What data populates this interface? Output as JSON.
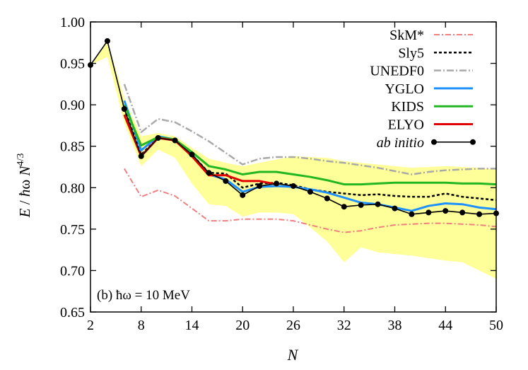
{
  "chart_data": {
    "type": "line",
    "xlabel": "N",
    "ylabel_parts": {
      "e": "E",
      "slash": " / ",
      "hbar": "ħ",
      "omega": "ω",
      "n": " N",
      "exp": "4/3"
    },
    "annotation": "(b) ħω = 10 MeV",
    "xlim": [
      2,
      50
    ],
    "ylim": [
      0.65,
      1.0
    ],
    "xticks": [
      2,
      8,
      14,
      20,
      26,
      32,
      38,
      44,
      50
    ],
    "yticks": [
      0.65,
      0.7,
      0.75,
      0.8,
      0.85,
      0.9,
      0.95,
      1.0
    ],
    "ytick_labels": [
      "0.65",
      "0.70",
      "0.75",
      "0.80",
      "0.85",
      "0.90",
      "0.95",
      "1.00"
    ],
    "band": {
      "color": "#ffff99",
      "x": [
        2,
        4,
        6,
        8,
        10,
        12,
        14,
        16,
        18,
        20,
        22,
        24,
        26,
        28,
        30,
        32,
        34,
        36,
        38,
        40,
        42,
        44,
        46,
        48,
        50
      ],
      "upper": [
        0.948,
        0.977,
        0.908,
        0.862,
        0.866,
        0.862,
        0.848,
        0.835,
        0.83,
        0.826,
        0.83,
        0.834,
        0.838,
        0.837,
        0.836,
        0.832,
        0.83,
        0.828,
        0.826,
        0.824,
        0.825,
        0.826,
        0.825,
        0.824,
        0.822
      ],
      "lower": [
        0.948,
        0.958,
        0.878,
        0.826,
        0.846,
        0.836,
        0.805,
        0.78,
        0.778,
        0.765,
        0.77,
        0.77,
        0.768,
        0.752,
        0.735,
        0.71,
        0.728,
        0.722,
        0.72,
        0.718,
        0.715,
        0.712,
        0.71,
        0.7,
        0.69
      ]
    },
    "series": [
      {
        "name": "SkM*",
        "color": "#f08080",
        "dash": "8,3,2,3",
        "width": 2,
        "x": [
          6,
          8,
          10,
          12,
          14,
          16,
          18,
          20,
          22,
          24,
          26,
          28,
          30,
          32,
          34,
          36,
          38,
          40,
          42,
          44,
          46,
          48,
          50
        ],
        "y": [
          0.823,
          0.789,
          0.797,
          0.79,
          0.775,
          0.76,
          0.76,
          0.762,
          0.762,
          0.762,
          0.76,
          0.755,
          0.75,
          0.746,
          0.748,
          0.752,
          0.755,
          0.756,
          0.757,
          0.757,
          0.756,
          0.755,
          0.753
        ]
      },
      {
        "name": "Sly5",
        "color": "#000000",
        "dash": "4,3",
        "width": 2.5,
        "x": [
          6,
          8,
          10,
          12,
          14,
          16,
          18,
          20,
          22,
          24,
          26,
          28,
          30,
          32,
          34,
          36,
          38,
          40,
          42,
          44,
          46,
          48,
          50
        ],
        "y": [
          0.895,
          0.84,
          0.86,
          0.857,
          0.84,
          0.818,
          0.817,
          0.8,
          0.805,
          0.806,
          0.803,
          0.798,
          0.795,
          0.793,
          0.791,
          0.792,
          0.79,
          0.789,
          0.789,
          0.793,
          0.789,
          0.787,
          0.785
        ]
      },
      {
        "name": "UNEDF0",
        "color": "#a9a9a9",
        "dash": "10,3,2,3",
        "width": 2.5,
        "x": [
          6,
          8,
          10,
          12,
          14,
          16,
          18,
          20,
          22,
          24,
          26,
          28,
          30,
          32,
          34,
          36,
          38,
          40,
          42,
          44,
          46,
          48,
          50
        ],
        "y": [
          0.925,
          0.867,
          0.883,
          0.879,
          0.868,
          0.856,
          0.842,
          0.828,
          0.835,
          0.837,
          0.837,
          0.835,
          0.832,
          0.83,
          0.827,
          0.824,
          0.82,
          0.816,
          0.819,
          0.821,
          0.822,
          0.823,
          0.823
        ]
      },
      {
        "name": "YGLO",
        "color": "#1e90ff",
        "dash": "",
        "width": 3,
        "x": [
          6,
          8,
          10,
          12,
          14,
          16,
          18,
          20,
          22,
          24,
          26,
          28,
          30,
          32,
          34,
          36,
          38,
          40,
          42,
          44,
          46,
          48,
          50
        ],
        "y": [
          0.905,
          0.845,
          0.862,
          0.858,
          0.84,
          0.816,
          0.81,
          0.795,
          0.801,
          0.802,
          0.801,
          0.798,
          0.794,
          0.788,
          0.782,
          0.78,
          0.776,
          0.772,
          0.778,
          0.781,
          0.78,
          0.776,
          0.774
        ]
      },
      {
        "name": "KIDS",
        "color": "#22b722",
        "dash": "",
        "width": 3,
        "x": [
          6,
          8,
          10,
          12,
          14,
          16,
          18,
          20,
          22,
          24,
          26,
          28,
          30,
          32,
          34,
          36,
          38,
          40,
          42,
          44,
          46,
          48,
          50
        ],
        "y": [
          0.9,
          0.851,
          0.861,
          0.858,
          0.843,
          0.826,
          0.822,
          0.816,
          0.819,
          0.819,
          0.816,
          0.813,
          0.809,
          0.804,
          0.804,
          0.805,
          0.806,
          0.806,
          0.806,
          0.806,
          0.805,
          0.805,
          0.804
        ]
      },
      {
        "name": "ELYO",
        "color": "#e00000",
        "dash": "",
        "width": 3,
        "x": [
          6,
          8,
          10,
          12,
          14,
          16,
          18,
          20,
          22,
          24
        ],
        "y": [
          0.888,
          0.838,
          0.86,
          0.857,
          0.838,
          0.815,
          0.815,
          0.808,
          0.808,
          0.804
        ]
      },
      {
        "name": "ab initio",
        "color": "#000000",
        "dash": "",
        "width": 1.6,
        "markers": true,
        "x": [
          2,
          4,
          6,
          8,
          10,
          12,
          14,
          16,
          18,
          20,
          22,
          24,
          26,
          28,
          30,
          32,
          34,
          36,
          38,
          40,
          42,
          44,
          46,
          48,
          50
        ],
        "y": [
          0.948,
          0.977,
          0.895,
          0.838,
          0.86,
          0.857,
          0.84,
          0.818,
          0.808,
          0.791,
          0.802,
          0.805,
          0.802,
          0.795,
          0.787,
          0.777,
          0.779,
          0.78,
          0.775,
          0.768,
          0.77,
          0.772,
          0.77,
          0.768,
          0.769
        ]
      }
    ],
    "legend_position": "top-right"
  }
}
